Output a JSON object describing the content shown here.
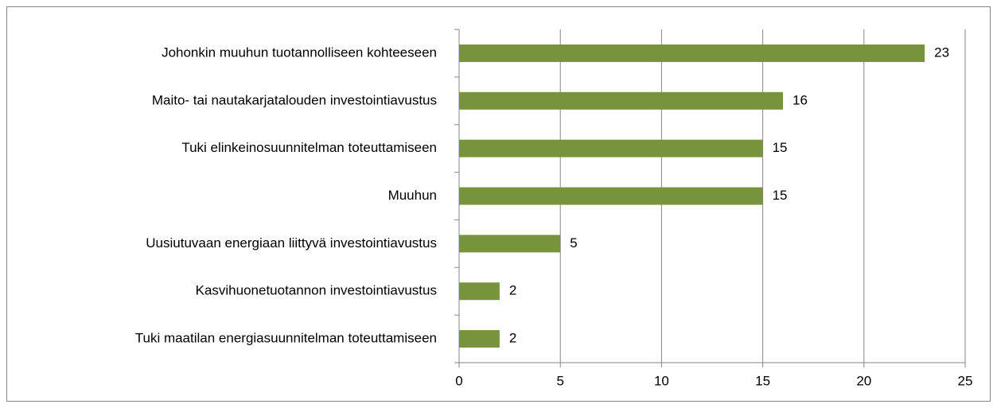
{
  "chart_data": {
    "type": "bar",
    "orientation": "horizontal",
    "categories": [
      "Johonkin muuhun tuotannolliseen kohteeseen",
      "Maito- tai nautakarjatalouden investointiavustus",
      "Tuki elinkeinosuunnitelman toteuttamiseen",
      "Muuhun",
      "Uusiutuvaan energiaan liittyvä investointiavustus",
      "Kasvihuonetuotannon investointiavustus",
      "Tuki maatilan energiasuunnitelman toteuttamiseen"
    ],
    "values": [
      23,
      16,
      15,
      15,
      5,
      2,
      2
    ],
    "color": "#77933c",
    "xlim": [
      0,
      25
    ],
    "xticks": [
      0,
      5,
      10,
      15,
      20,
      25
    ],
    "grid": true
  }
}
